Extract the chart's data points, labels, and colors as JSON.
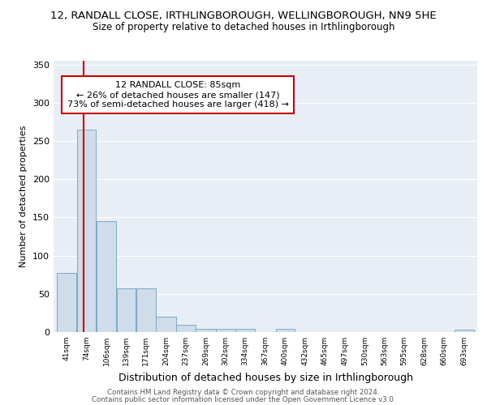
{
  "title1": "12, RANDALL CLOSE, IRTHLINGBOROUGH, WELLINGBOROUGH, NN9 5HE",
  "title2": "Size of property relative to detached houses in Irthlingborough",
  "xlabel": "Distribution of detached houses by size in Irthlingborough",
  "ylabel": "Number of detached properties",
  "bar_edges": [
    41,
    74,
    106,
    139,
    171,
    204,
    237,
    269,
    302,
    334,
    367,
    400,
    432,
    465,
    497,
    530,
    563,
    595,
    628,
    660,
    693,
    726
  ],
  "bar_heights": [
    77,
    265,
    145,
    57,
    57,
    20,
    10,
    4,
    4,
    4,
    0,
    4,
    0,
    0,
    0,
    0,
    0,
    0,
    0,
    0,
    3
  ],
  "bar_color": "#cfdcea",
  "bar_edgecolor": "#7aaac8",
  "bar_linewidth": 0.7,
  "vline_x": 85,
  "vline_color": "#cc0000",
  "vline_linewidth": 1.5,
  "annotation_text": "12 RANDALL CLOSE: 85sqm\n← 26% of detached houses are smaller (147)\n73% of semi-detached houses are larger (418) →",
  "annotation_facecolor": "white",
  "annotation_edgecolor": "#cc0000",
  "ylim": [
    0,
    355
  ],
  "yticks": [
    0,
    50,
    100,
    150,
    200,
    250,
    300,
    350
  ],
  "bg_color": "#e8eef5",
  "grid_color": "white",
  "footer1": "Contains HM Land Registry data © Crown copyright and database right 2024.",
  "footer2": "Contains public sector information licensed under the Open Government Licence v3.0."
}
